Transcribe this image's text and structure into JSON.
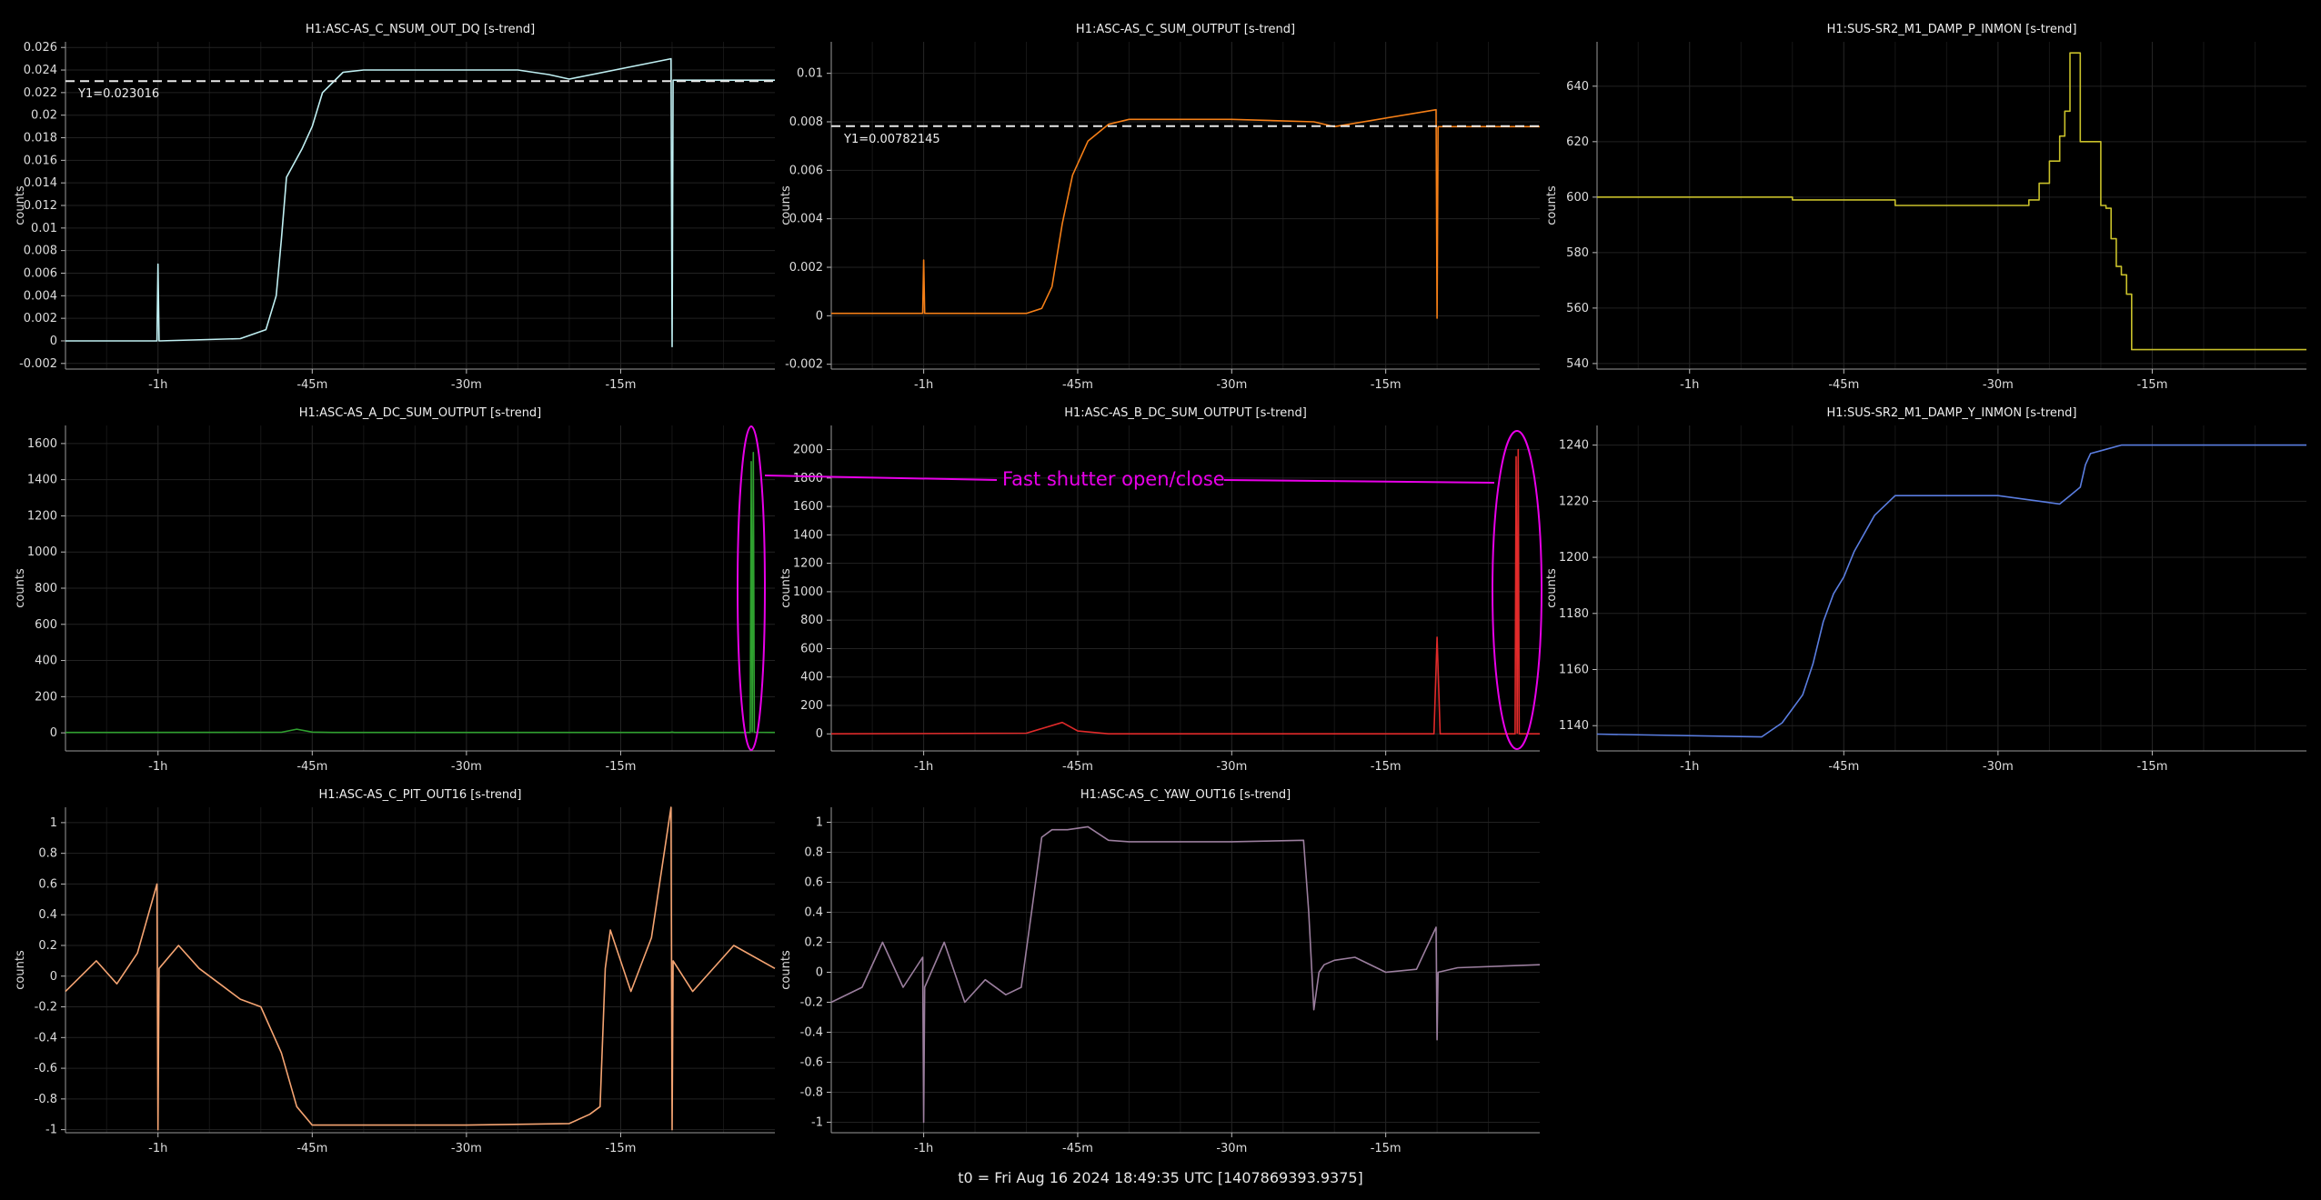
{
  "footer": {
    "t0": "t0 = Fri Aug 16 2024 18:49:35 UTC [1407869393.9375]"
  },
  "annotation": {
    "text": "Fast shutter open/close",
    "color": "#e800e8"
  },
  "common": {
    "ylabel": "counts",
    "x_unit": "minutes relative to t0",
    "xlim": [
      -69,
      0
    ],
    "x_ticks": [
      -60,
      -45,
      -30,
      -15
    ],
    "x_tick_labels": [
      "-1h",
      "-45m",
      "-30m",
      "-15m"
    ],
    "grid": true,
    "legend": "none"
  },
  "chart_data": [
    {
      "type": "line",
      "title": "H1:ASC-AS_C_NSUM_OUT_DQ [s-trend]",
      "ylabel": "counts",
      "color": "#bfeff2",
      "ylim": [
        -0.0025,
        0.0265
      ],
      "y_ticks": [
        -0.002,
        0,
        0.002,
        0.004,
        0.006,
        0.008,
        0.01,
        0.012,
        0.014,
        0.016,
        0.018,
        0.02,
        0.022,
        0.024,
        0.026
      ],
      "y_tick_labels": [
        "-0.002",
        "0",
        "0.002",
        "0.004",
        "0.006",
        "0.008",
        "0.01",
        "0.012",
        "0.014",
        "0.016",
        "0.018",
        "0.02",
        "0.022",
        "0.024",
        "0.026"
      ],
      "x": [
        -69,
        -60.1,
        -60,
        -59.9,
        -52,
        -49.5,
        -48.5,
        -48,
        -47.5,
        -46,
        -45,
        -44,
        -42,
        -40,
        -30,
        -25,
        -22,
        -20,
        -10.1,
        -10,
        -9.9,
        0
      ],
      "y": [
        0,
        0,
        0.0068,
        0,
        0.0002,
        0.001,
        0.004,
        0.009,
        0.0145,
        0.017,
        0.019,
        0.022,
        0.0238,
        0.024,
        0.024,
        0.024,
        0.0236,
        0.0232,
        0.025,
        -0.0005,
        0.0231,
        0.0231
      ],
      "reference_line": {
        "y": 0.023016,
        "label": "Y1=0.023016",
        "style": "dashed"
      }
    },
    {
      "type": "line",
      "title": "H1:ASC-AS_C_SUM_OUTPUT [s-trend]",
      "ylabel": "counts",
      "color": "#f57f17",
      "ylim": [
        -0.0022,
        0.0113
      ],
      "y_ticks": [
        -0.002,
        0,
        0.002,
        0.004,
        0.006,
        0.008,
        0.01
      ],
      "y_tick_labels": [
        "-0.002",
        "0",
        "0.002",
        "0.004",
        "0.006",
        "0.008",
        "0.01"
      ],
      "x": [
        -69,
        -60.1,
        -60,
        -59.9,
        -50,
        -48.5,
        -47.5,
        -46.5,
        -45.5,
        -44,
        -42,
        -40,
        -30,
        -22,
        -20,
        -10.1,
        -10,
        -9.9,
        0
      ],
      "y": [
        0.0001,
        0.0001,
        0.0023,
        0.0001,
        0.0001,
        0.0003,
        0.0012,
        0.0038,
        0.0058,
        0.0072,
        0.0079,
        0.0081,
        0.0081,
        0.008,
        0.0078,
        0.0085,
        -0.0001,
        0.0078,
        0.0078
      ],
      "reference_line": {
        "y": 0.00782145,
        "label": "Y1=0.00782145",
        "style": "dashed"
      }
    },
    {
      "type": "line",
      "title": "H1:SUS-SR2_M1_DAMP_P_INMON [s-trend]",
      "ylabel": "counts",
      "color": "#c8c02a",
      "ylim": [
        538,
        656
      ],
      "y_ticks": [
        540,
        560,
        580,
        600,
        620,
        640
      ],
      "y_tick_labels": [
        "540",
        "560",
        "580",
        "600",
        "620",
        "640"
      ],
      "x": [
        -69,
        -50,
        -40,
        -30,
        -28,
        -27,
        -26,
        -25,
        -24,
        -23.5,
        -23,
        -22,
        -20,
        -19.5,
        -19,
        -18.5,
        -18,
        -17.5,
        -17,
        -15,
        -10,
        0
      ],
      "y": [
        600,
        599,
        597,
        597,
        597,
        599,
        605,
        613,
        622,
        631,
        652,
        620,
        597,
        596,
        585,
        575,
        572,
        565,
        545,
        545,
        545,
        545
      ],
      "step": true
    },
    {
      "type": "line",
      "title": "H1:ASC-AS_A_DC_SUM_OUTPUT [s-trend]",
      "ylabel": "counts",
      "color": "#2fa02f",
      "ylim": [
        -100,
        1700
      ],
      "y_ticks": [
        0,
        200,
        400,
        600,
        800,
        1000,
        1200,
        1400,
        1600
      ],
      "y_tick_labels": [
        "0",
        "200",
        "400",
        "600",
        "800",
        "1000",
        "1200",
        "1400",
        "1600"
      ],
      "x": [
        -69,
        -48,
        -46.5,
        -45,
        -43,
        -20,
        -10.2,
        -10,
        -9.8,
        -2.4,
        -2.3,
        -2.2,
        -2.1,
        -2,
        0
      ],
      "y": [
        2,
        3,
        20,
        4,
        2,
        2,
        2,
        4,
        2,
        2,
        1500,
        5,
        1550,
        3,
        2
      ]
    },
    {
      "type": "line",
      "title": "H1:ASC-AS_B_DC_SUM_OUTPUT [s-trend]",
      "ylabel": "counts",
      "color": "#e02a2a",
      "ylim": [
        -120,
        2170
      ],
      "y_ticks": [
        0,
        200,
        400,
        600,
        800,
        1000,
        1200,
        1400,
        1600,
        1800,
        2000
      ],
      "y_tick_labels": [
        "0",
        "200",
        "400",
        "600",
        "800",
        "1000",
        "1200",
        "1400",
        "1600",
        "1800",
        "2000"
      ],
      "x": [
        -69,
        -50,
        -46.5,
        -45,
        -42,
        -20,
        -10.3,
        -10,
        -9.7,
        -2.4,
        -2.3,
        -2.2,
        -2.1,
        -2,
        0
      ],
      "y": [
        0,
        5,
        80,
        20,
        0,
        0,
        0,
        680,
        0,
        0,
        1950,
        5,
        2000,
        0,
        0
      ]
    },
    {
      "type": "line",
      "title": "H1:SUS-SR2_M1_DAMP_Y_INMON [s-trend]",
      "ylabel": "counts",
      "color": "#5a7de0",
      "ylim": [
        1131,
        1247
      ],
      "y_ticks": [
        1140,
        1160,
        1180,
        1200,
        1220,
        1240
      ],
      "y_tick_labels": [
        "1140",
        "1160",
        "1180",
        "1200",
        "1220",
        "1240"
      ],
      "x": [
        -69,
        -53,
        -51,
        -49,
        -48,
        -47,
        -46,
        -45,
        -44,
        -42,
        -40,
        -35,
        -30,
        -26,
        -24,
        -23,
        -22,
        -21.5,
        -21,
        -20,
        -18,
        -15,
        -10,
        0
      ],
      "y": [
        1137,
        1136,
        1141,
        1151,
        1162,
        1177,
        1187,
        1193,
        1202,
        1215,
        1222,
        1222,
        1222,
        1220,
        1219,
        1222,
        1225,
        1233,
        1237,
        1238,
        1240,
        1240,
        1240,
        1240
      ]
    },
    {
      "type": "line",
      "title": "H1:ASC-AS_C_PIT_OUT16 [s-trend]",
      "ylabel": "counts",
      "color": "#f5a472",
      "ylim": [
        -1.02,
        1.1
      ],
      "y_ticks": [
        -1,
        -0.8,
        -0.6,
        -0.4,
        -0.2,
        0,
        0.2,
        0.4,
        0.6,
        0.8,
        1
      ],
      "y_tick_labels": [
        "-1",
        "-0.8",
        "-0.6",
        "-0.4",
        "-0.2",
        "0",
        "0.2",
        "0.4",
        "0.6",
        "0.8",
        "1"
      ],
      "x": [
        -69,
        -66,
        -64,
        -62,
        -60.1,
        -60,
        -59.9,
        -58,
        -56,
        -54,
        -52,
        -50,
        -48,
        -46.5,
        -45,
        -40,
        -30,
        -20,
        -18,
        -17,
        -16.5,
        -16,
        -14,
        -12,
        -10.1,
        -10,
        -9.9,
        -8,
        -4,
        0
      ],
      "y": [
        -0.1,
        0.1,
        -0.05,
        0.15,
        0.6,
        -1,
        0.05,
        0.2,
        0.05,
        -0.05,
        -0.15,
        -0.2,
        -0.5,
        -0.85,
        -0.97,
        -0.97,
        -0.97,
        -0.96,
        -0.9,
        -0.85,
        0.05,
        0.3,
        -0.1,
        0.25,
        1.1,
        -1,
        0.1,
        -0.1,
        0.2,
        0.05
      ]
    },
    {
      "type": "line",
      "title": "H1:ASC-AS_C_YAW_OUT16 [s-trend]",
      "ylabel": "counts",
      "color": "#9b7e9e",
      "ylim": [
        -1.07,
        1.1
      ],
      "y_ticks": [
        -1,
        -0.8,
        -0.6,
        -0.4,
        -0.2,
        0,
        0.2,
        0.4,
        0.6,
        0.8,
        1
      ],
      "y_tick_labels": [
        "-1",
        "-0.8",
        "-0.6",
        "-0.4",
        "-0.2",
        "0",
        "0.2",
        "0.4",
        "0.6",
        "0.8",
        "1"
      ],
      "x": [
        -69,
        -66,
        -64,
        -62,
        -60.1,
        -60,
        -59.9,
        -58,
        -56,
        -54,
        -52,
        -50.5,
        -49.5,
        -48.5,
        -47.5,
        -46,
        -44,
        -42,
        -40,
        -35,
        -30,
        -23,
        -22.5,
        -22,
        -21.5,
        -21,
        -20,
        -18,
        -15,
        -12,
        -10.1,
        -10,
        -9.9,
        -8,
        0
      ],
      "y": [
        -0.2,
        -0.1,
        0.2,
        -0.1,
        0.1,
        -1,
        -0.1,
        0.2,
        -0.2,
        -0.05,
        -0.15,
        -0.1,
        0.4,
        0.9,
        0.95,
        0.95,
        0.97,
        0.88,
        0.87,
        0.87,
        0.87,
        0.88,
        0.4,
        -0.25,
        0.0,
        0.05,
        0.08,
        0.1,
        0.0,
        0.02,
        0.3,
        -0.45,
        0.0,
        0.03,
        0.05
      ]
    }
  ]
}
